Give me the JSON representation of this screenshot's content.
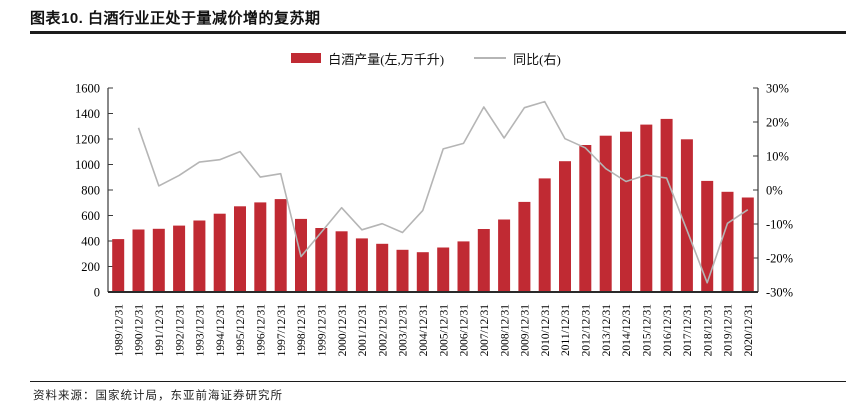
{
  "header": {
    "title": "图表10. 白酒行业正处于量减价增的复苏期"
  },
  "legend": {
    "bar_label": "白酒产量(左,万千升)",
    "line_label": "同比(右)"
  },
  "footer": {
    "source": "资料来源：国家统计局，东亚前海证券研究所"
  },
  "colors": {
    "bar": "#C02A33",
    "line": "#B5B5B5",
    "axis": "#3a3a3a",
    "text": "#000000"
  },
  "chart_data": {
    "type": "combo-bar-line",
    "title": "白酒行业正处于量减价增的复苏期",
    "categories": [
      "1989/12/31",
      "1990/12/31",
      "1991/12/31",
      "1992/12/31",
      "1993/12/31",
      "1994/12/31",
      "1995/12/31",
      "1996/12/31",
      "1997/12/31",
      "1998/12/31",
      "1999/12/31",
      "2000/12/31",
      "2001/12/31",
      "2002/12/31",
      "2003/12/31",
      "2004/12/31",
      "2005/12/31",
      "2006/12/31",
      "2007/12/31",
      "2008/12/31",
      "2009/12/31",
      "2010/12/31",
      "2011/12/31",
      "2012/12/31",
      "2013/12/31",
      "2014/12/31",
      "2015/12/31",
      "2016/12/31",
      "2017/12/31",
      "2018/12/31",
      "2019/12/31",
      "2020/12/31"
    ],
    "series": [
      {
        "name": "白酒产量(左,万千升)",
        "type": "bar",
        "axis": "left",
        "values": [
          415,
          490,
          496,
          521,
          561,
          614,
          672,
          703,
          729,
          573,
          502,
          476,
          420,
          378,
          331,
          312,
          349,
          397,
          494,
          569,
          707,
          891,
          1026,
          1153,
          1226,
          1257,
          1313,
          1358,
          1198,
          871,
          786,
          741
        ]
      },
      {
        "name": "同比(右)",
        "type": "line",
        "axis": "right",
        "values": [
          null,
          18.3,
          1.2,
          4.3,
          8.2,
          8.9,
          11.3,
          3.8,
          4.8,
          -19.6,
          -12.4,
          -5.2,
          -11.7,
          -9.9,
          -12.5,
          -6.0,
          12.1,
          13.7,
          24.4,
          15.3,
          24.2,
          26.0,
          15.1,
          12.4,
          6.3,
          2.5,
          4.4,
          3.5,
          -11.8,
          -27.3,
          -9.8,
          -5.8
        ]
      }
    ],
    "left_axis": {
      "min": 0,
      "max": 1600,
      "step": 200,
      "tick_labels": [
        "0",
        "200",
        "400",
        "600",
        "800",
        "1000",
        "1200",
        "1400",
        "1600"
      ]
    },
    "right_axis": {
      "min": -30,
      "max": 30,
      "step": 10,
      "format": "percent",
      "tick_labels": [
        "-30%",
        "-20%",
        "-10%",
        "0%",
        "10%",
        "20%",
        "30%"
      ]
    },
    "legend_position": "top",
    "grid": false
  }
}
